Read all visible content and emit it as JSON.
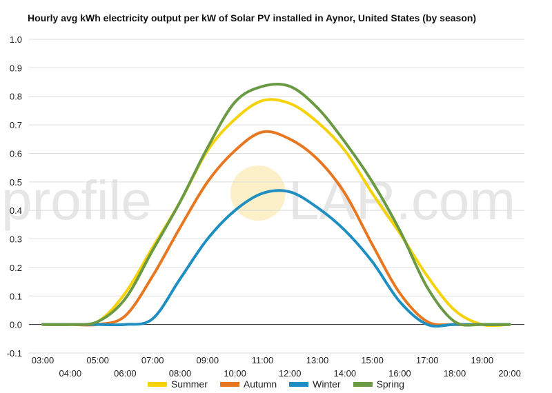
{
  "chart_data": {
    "type": "line",
    "title": "Hourly avg kWh electricity output per kW of Solar PV installed in Aynor, United States (by season)",
    "xlabel": "",
    "ylabel": "",
    "ylim": [
      -0.1,
      1.0
    ],
    "yticks": [
      "-0.1",
      "0.0",
      "0.1",
      "0.2",
      "0.3",
      "0.4",
      "0.5",
      "0.6",
      "0.7",
      "0.8",
      "0.9",
      "1.0"
    ],
    "grid": true,
    "legend_position": "bottom",
    "x": [
      "03:00",
      "04:00",
      "05:00",
      "06:00",
      "07:00",
      "08:00",
      "09:00",
      "10:00",
      "11:00",
      "12:00",
      "13:00",
      "14:00",
      "15:00",
      "16:00",
      "17:00",
      "18:00",
      "19:00",
      "20:00"
    ],
    "series": [
      {
        "name": "Summer",
        "color": "#f5d20a",
        "values": [
          0.0,
          0.0,
          0.01,
          0.11,
          0.27,
          0.43,
          0.61,
          0.72,
          0.785,
          0.775,
          0.71,
          0.61,
          0.46,
          0.32,
          0.17,
          0.05,
          0.0,
          0.0
        ]
      },
      {
        "name": "Autumn",
        "color": "#e87722",
        "values": [
          0.0,
          0.0,
          0.0,
          0.03,
          0.17,
          0.34,
          0.5,
          0.61,
          0.675,
          0.65,
          0.58,
          0.46,
          0.28,
          0.11,
          0.01,
          0.0,
          0.0,
          0.0
        ]
      },
      {
        "name": "Winter",
        "color": "#1f8ec1",
        "values": [
          0.0,
          0.0,
          0.0,
          0.0,
          0.02,
          0.16,
          0.3,
          0.4,
          0.46,
          0.465,
          0.41,
          0.33,
          0.22,
          0.08,
          0.0,
          0.0,
          0.0,
          0.0
        ]
      },
      {
        "name": "Spring",
        "color": "#6a9a44",
        "values": [
          0.0,
          0.0,
          0.01,
          0.09,
          0.26,
          0.43,
          0.62,
          0.78,
          0.835,
          0.835,
          0.76,
          0.64,
          0.5,
          0.33,
          0.13,
          0.01,
          0.0,
          0.0
        ]
      }
    ]
  },
  "watermark": {
    "left": "profile",
    "right": "LAR.com"
  }
}
